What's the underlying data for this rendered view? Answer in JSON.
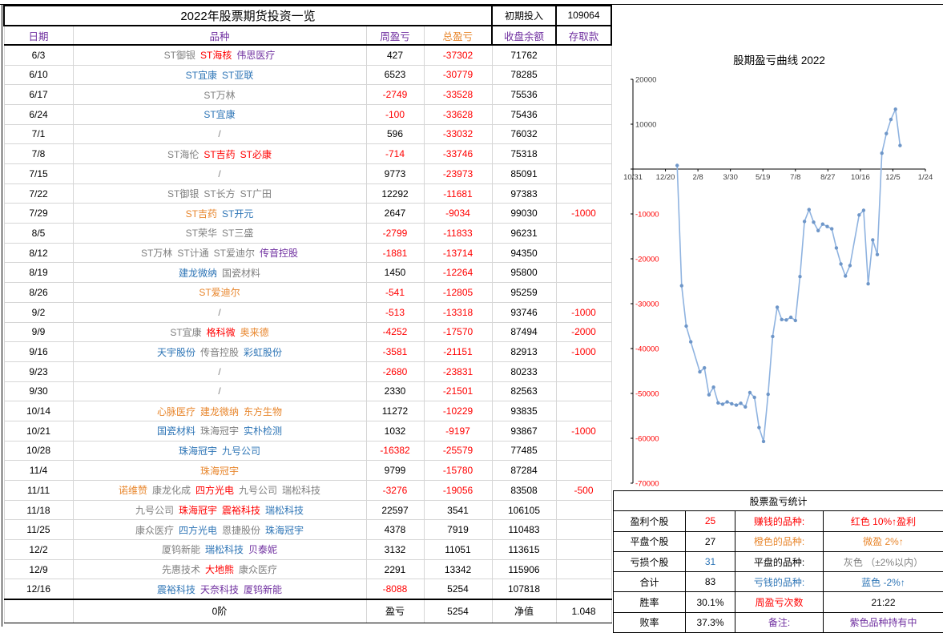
{
  "table": {
    "title": "2022年股票期货投资一览",
    "initial": {
      "label": "初期投入",
      "value": "109064"
    },
    "headers": {
      "date": "日期",
      "variety": "品种",
      "weekly": "周盈亏",
      "total": "总盈亏",
      "balance": "收盘余额",
      "deposit": "存取款"
    },
    "rows": [
      {
        "date": "6/3",
        "varieties": [
          [
            "ST御银",
            "gray"
          ],
          [
            "ST海核",
            "red"
          ],
          [
            "伟思医疗",
            "purple"
          ]
        ],
        "weekly": "427",
        "total": "-37302",
        "balance": "71762",
        "deposit": ""
      },
      {
        "date": "6/10",
        "varieties": [
          [
            "ST宜康",
            "blue"
          ],
          [
            "ST亚联",
            "blue"
          ]
        ],
        "weekly": "6523",
        "total": "-30779",
        "balance": "78285",
        "deposit": ""
      },
      {
        "date": "6/17",
        "varieties": [
          [
            "ST万林",
            "gray"
          ]
        ],
        "weekly": "-2749",
        "total": "-33528",
        "balance": "75536",
        "deposit": ""
      },
      {
        "date": "6/24",
        "varieties": [
          [
            "ST宜康",
            "blue"
          ]
        ],
        "weekly": "-100",
        "total": "-33628",
        "balance": "75436",
        "deposit": ""
      },
      {
        "date": "7/1",
        "varieties": [
          [
            "/",
            "gray"
          ]
        ],
        "weekly": "596",
        "total": "-33032",
        "balance": "76032",
        "deposit": ""
      },
      {
        "date": "7/8",
        "varieties": [
          [
            "ST海伦",
            "gray"
          ],
          [
            "ST吉药",
            "red"
          ],
          [
            "ST必康",
            "red"
          ]
        ],
        "weekly": "-714",
        "total": "-33746",
        "balance": "75318",
        "deposit": ""
      },
      {
        "date": "7/15",
        "varieties": [
          [
            "/",
            "gray"
          ]
        ],
        "weekly": "9773",
        "total": "-23973",
        "balance": "85091",
        "deposit": ""
      },
      {
        "date": "7/22",
        "varieties": [
          [
            "ST御银",
            "gray"
          ],
          [
            "ST长方",
            "gray"
          ],
          [
            "ST广田",
            "gray"
          ]
        ],
        "weekly": "12292",
        "total": "-11681",
        "balance": "97383",
        "deposit": ""
      },
      {
        "date": "7/29",
        "varieties": [
          [
            "ST吉药",
            "orange"
          ],
          [
            "ST开元",
            "blue"
          ]
        ],
        "weekly": "2647",
        "total": "-9034",
        "balance": "99030",
        "deposit": "-1000"
      },
      {
        "date": "8/5",
        "varieties": [
          [
            "ST荣华",
            "gray"
          ],
          [
            "ST三盛",
            "gray"
          ]
        ],
        "weekly": "-2799",
        "total": "-11833",
        "balance": "96231",
        "deposit": ""
      },
      {
        "date": "8/12",
        "varieties": [
          [
            "ST万林",
            "gray"
          ],
          [
            "ST计通",
            "gray"
          ],
          [
            "ST爱迪尔",
            "gray"
          ],
          [
            "传音控股",
            "purple"
          ]
        ],
        "weekly": "-1881",
        "total": "-13714",
        "balance": "94350",
        "deposit": ""
      },
      {
        "date": "8/19",
        "varieties": [
          [
            "建龙微纳",
            "blue"
          ],
          [
            "国瓷材料",
            "gray"
          ]
        ],
        "weekly": "1450",
        "total": "-12264",
        "balance": "95800",
        "deposit": ""
      },
      {
        "date": "8/26",
        "varieties": [
          [
            "ST爱迪尔",
            "orange"
          ]
        ],
        "weekly": "-541",
        "total": "-12805",
        "balance": "95259",
        "deposit": ""
      },
      {
        "date": "9/2",
        "varieties": [
          [
            "/",
            "gray"
          ]
        ],
        "weekly": "-513",
        "total": "-13318",
        "balance": "93746",
        "deposit": "-1000"
      },
      {
        "date": "9/9",
        "varieties": [
          [
            "ST宜康",
            "gray"
          ],
          [
            "格科微",
            "red"
          ],
          [
            "奥来德",
            "orange"
          ]
        ],
        "weekly": "-4252",
        "total": "-17570",
        "balance": "87494",
        "deposit": "-2000"
      },
      {
        "date": "9/16",
        "varieties": [
          [
            "天宇股份",
            "blue"
          ],
          [
            "传音控股",
            "gray"
          ],
          [
            "彩虹股份",
            "blue"
          ]
        ],
        "weekly": "-3581",
        "total": "-21151",
        "balance": "82913",
        "deposit": "-1000"
      },
      {
        "date": "9/23",
        "varieties": [
          [
            "/",
            "gray"
          ]
        ],
        "weekly": "-2680",
        "total": "-23831",
        "balance": "80233",
        "deposit": ""
      },
      {
        "date": "9/30",
        "varieties": [
          [
            "/",
            "gray"
          ]
        ],
        "weekly": "2330",
        "total": "-21501",
        "balance": "82563",
        "deposit": ""
      },
      {
        "date": "10/14",
        "varieties": [
          [
            "心脉医疗",
            "orange"
          ],
          [
            "建龙微纳",
            "orange"
          ],
          [
            "东方生物",
            "orange"
          ]
        ],
        "weekly": "11272",
        "total": "-10229",
        "balance": "93835",
        "deposit": ""
      },
      {
        "date": "10/21",
        "varieties": [
          [
            "国瓷材料",
            "blue"
          ],
          [
            "珠海冠宇",
            "gray"
          ],
          [
            "实朴检测",
            "blue"
          ]
        ],
        "weekly": "1032",
        "total": "-9197",
        "balance": "93867",
        "deposit": "-1000"
      },
      {
        "date": "10/28",
        "varieties": [
          [
            "珠海冠宇",
            "blue"
          ],
          [
            "九号公司",
            "blue"
          ]
        ],
        "weekly": "-16382",
        "total": "-25579",
        "balance": "77485",
        "deposit": ""
      },
      {
        "date": "11/4",
        "varieties": [
          [
            "珠海冠宇",
            "orange"
          ]
        ],
        "weekly": "9799",
        "total": "-15780",
        "balance": "87284",
        "deposit": ""
      },
      {
        "date": "11/11",
        "varieties": [
          [
            "诺维赞",
            "orange"
          ],
          [
            "康龙化成",
            "gray"
          ],
          [
            "四方光电",
            "red"
          ],
          [
            "九号公司",
            "gray"
          ],
          [
            "瑞松科技",
            "gray"
          ]
        ],
        "weekly": "-3276",
        "total": "-19056",
        "balance": "83508",
        "deposit": "-500"
      },
      {
        "date": "11/18",
        "varieties": [
          [
            "九号公司",
            "gray"
          ],
          [
            "珠海冠宇",
            "red"
          ],
          [
            "震裕科技",
            "red"
          ],
          [
            "瑞松科技",
            "blue"
          ]
        ],
        "weekly": "22597",
        "total": "3541",
        "balance": "106105",
        "deposit": ""
      },
      {
        "date": "11/25",
        "varieties": [
          [
            "康众医疗",
            "gray"
          ],
          [
            "四方光电",
            "blue"
          ],
          [
            "恩捷股份",
            "gray"
          ],
          [
            "珠海冠宇",
            "blue"
          ]
        ],
        "weekly": "4378",
        "total": "7919",
        "balance": "110483",
        "deposit": ""
      },
      {
        "date": "12/2",
        "varieties": [
          [
            "厦钨新能",
            "gray"
          ],
          [
            "瑞松科技",
            "blue"
          ],
          [
            "贝泰妮",
            "purple"
          ]
        ],
        "weekly": "3132",
        "total": "11051",
        "balance": "113615",
        "deposit": ""
      },
      {
        "date": "12/9",
        "varieties": [
          [
            "先惠技术",
            "gray"
          ],
          [
            "大地熊",
            "red"
          ],
          [
            "康众医疗",
            "gray"
          ]
        ],
        "weekly": "2291",
        "total": "13342",
        "balance": "115906",
        "deposit": ""
      },
      {
        "date": "12/16",
        "varieties": [
          [
            "震裕科技",
            "blue"
          ],
          [
            "天奈科技",
            "purple"
          ],
          [
            "厦钨新能",
            "purple"
          ]
        ],
        "weekly": "-8088",
        "total": "5254",
        "balance": "107818",
        "deposit": ""
      }
    ],
    "footer": {
      "order_label": "0阶",
      "pnl_label": "盈亏",
      "pnl_value": "5254",
      "nav_label": "净值",
      "nav_value": "1.048"
    }
  },
  "stats": {
    "title": "股票盈亏统计",
    "rows": [
      [
        {
          "t": "盈利个股",
          "c": "black"
        },
        {
          "t": "25",
          "c": "red"
        },
        {
          "t": "赚钱的品种:",
          "c": "red"
        },
        {
          "t": "红色 10%↑盈利",
          "c": "red"
        }
      ],
      [
        {
          "t": "平盘个股",
          "c": "black"
        },
        {
          "t": "27",
          "c": "black"
        },
        {
          "t": "橙色的品种:",
          "c": "orange"
        },
        {
          "t": "微盈 2%↑",
          "c": "orange"
        }
      ],
      [
        {
          "t": "亏损个股",
          "c": "black"
        },
        {
          "t": "31",
          "c": "blue"
        },
        {
          "t": "平盘的品种:",
          "c": "black"
        },
        {
          "t": "灰色 （±2%以内）",
          "c": "gray"
        }
      ],
      [
        {
          "t": "合计",
          "c": "black"
        },
        {
          "t": "83",
          "c": "black"
        },
        {
          "t": "亏钱的品种:",
          "c": "blue"
        },
        {
          "t": "蓝色 -2%↑",
          "c": "blue"
        }
      ],
      [
        {
          "t": "胜率",
          "c": "black"
        },
        {
          "t": "30.1%",
          "c": "black"
        },
        {
          "t": "周盈亏次数",
          "c": "red"
        },
        {
          "t": "21:22",
          "c": "black"
        }
      ],
      [
        {
          "t": "败率",
          "c": "black"
        },
        {
          "t": "37.3%",
          "c": "black"
        },
        {
          "t": "备注:",
          "c": "purple"
        },
        {
          "t": "紫色品种持有中",
          "c": "purple"
        }
      ]
    ]
  },
  "chart_data": {
    "type": "line",
    "title": "股期盈亏曲线 2022",
    "xlabel": "",
    "ylabel": "",
    "ylim": [
      -70000,
      20000
    ],
    "y_tick_step": 10000,
    "x_ticks": [
      "10/31",
      "12/20",
      "2/8",
      "3/30",
      "5/19",
      "7/8",
      "8/27",
      "10/16",
      "12/5",
      "1/24"
    ],
    "x_tick_day_span": 450,
    "legend": "none",
    "grid": "off",
    "points": [
      {
        "date": "1/7",
        "value": 800
      },
      {
        "date": "1/14",
        "value": -26000
      },
      {
        "date": "1/21",
        "value": -35000
      },
      {
        "date": "1/28",
        "value": -38500
      },
      {
        "date": "2/11",
        "value": -45200
      },
      {
        "date": "2/18",
        "value": -44300
      },
      {
        "date": "2/25",
        "value": -50300
      },
      {
        "date": "3/4",
        "value": -48600
      },
      {
        "date": "3/11",
        "value": -52100
      },
      {
        "date": "3/18",
        "value": -52400
      },
      {
        "date": "3/25",
        "value": -51900
      },
      {
        "date": "4/1",
        "value": -52300
      },
      {
        "date": "4/8",
        "value": -52600
      },
      {
        "date": "4/15",
        "value": -52200
      },
      {
        "date": "4/22",
        "value": -53000
      },
      {
        "date": "4/29",
        "value": -49800
      },
      {
        "date": "5/6",
        "value": -50900
      },
      {
        "date": "5/13",
        "value": -57600
      },
      {
        "date": "5/20",
        "value": -60700
      },
      {
        "date": "5/27",
        "value": -50200
      },
      {
        "date": "6/3",
        "value": -37302
      },
      {
        "date": "6/10",
        "value": -30779
      },
      {
        "date": "6/17",
        "value": -33528
      },
      {
        "date": "6/24",
        "value": -33628
      },
      {
        "date": "7/1",
        "value": -33032
      },
      {
        "date": "7/8",
        "value": -33746
      },
      {
        "date": "7/15",
        "value": -23973
      },
      {
        "date": "7/22",
        "value": -11681
      },
      {
        "date": "7/29",
        "value": -9034
      },
      {
        "date": "8/5",
        "value": -11833
      },
      {
        "date": "8/12",
        "value": -13714
      },
      {
        "date": "8/19",
        "value": -12264
      },
      {
        "date": "8/26",
        "value": -12805
      },
      {
        "date": "9/2",
        "value": -13318
      },
      {
        "date": "9/9",
        "value": -17570
      },
      {
        "date": "9/16",
        "value": -21151
      },
      {
        "date": "9/23",
        "value": -23831
      },
      {
        "date": "9/30",
        "value": -21501
      },
      {
        "date": "10/14",
        "value": -10229
      },
      {
        "date": "10/21",
        "value": -9197
      },
      {
        "date": "10/28",
        "value": -25579
      },
      {
        "date": "11/4",
        "value": -15780
      },
      {
        "date": "11/11",
        "value": -19056
      },
      {
        "date": "11/18",
        "value": 3541
      },
      {
        "date": "11/25",
        "value": 7919
      },
      {
        "date": "12/2",
        "value": 11051
      },
      {
        "date": "12/9",
        "value": 13342
      },
      {
        "date": "12/16",
        "value": 5254
      }
    ]
  },
  "colors": {
    "red": "#ff0000",
    "orange": "#e8862c",
    "gray": "#808080",
    "blue": "#2e75b6",
    "purple": "#7030a0",
    "line": "#8fb3e0",
    "marker": "#6e96c8"
  }
}
